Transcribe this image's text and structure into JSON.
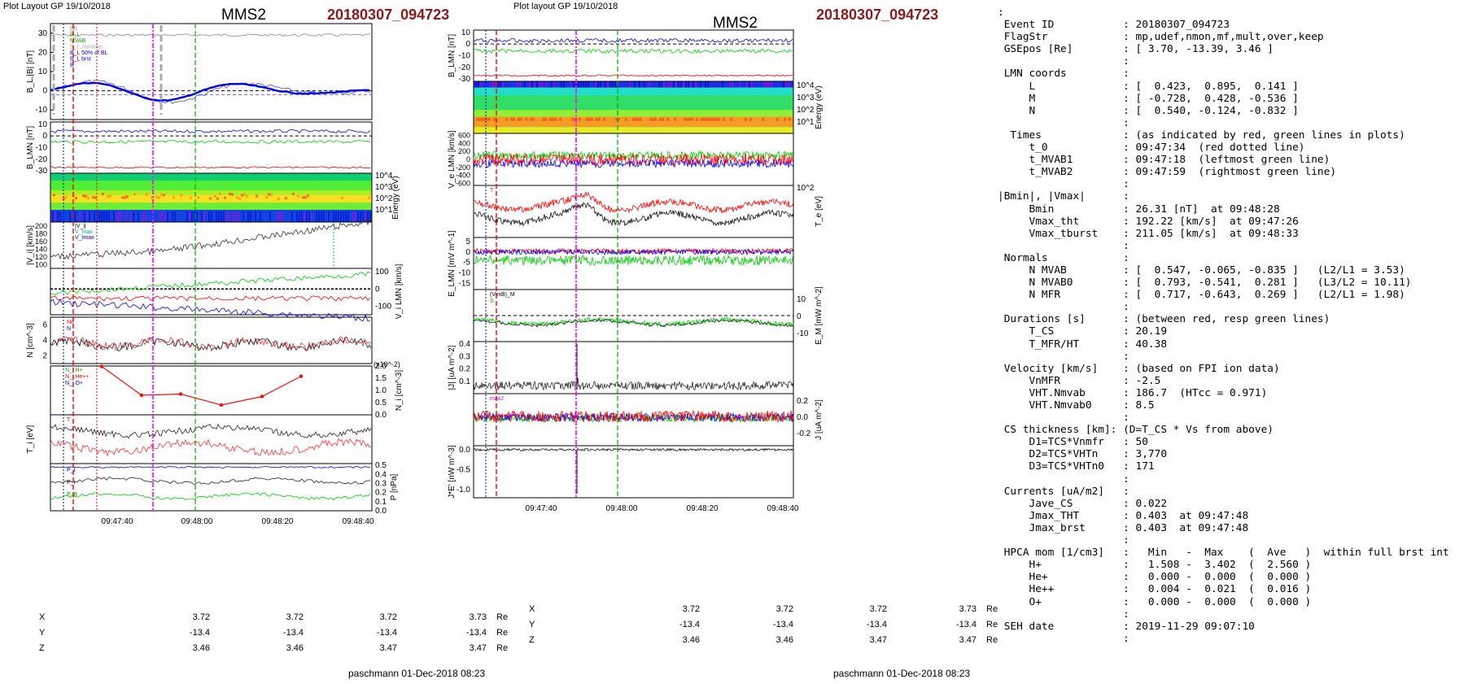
{
  "left": {
    "header_label": "Plot Layout GP 19/10/2018",
    "spacecraft": "MMS2",
    "event_id": "20180307_094723",
    "time_ticks": [
      "09:47:40",
      "09:48:00",
      "09:48:20",
      "09:48:40"
    ],
    "positions": {
      "rows": [
        {
          "label": "X",
          "values": [
            "3.72",
            "3.72",
            "3.72",
            "3.73"
          ],
          "unit": "Re"
        },
        {
          "label": "Y",
          "values": [
            "-13.4",
            "-13.4",
            "-13.4",
            "-13.4"
          ],
          "unit": "Re"
        },
        {
          "label": "Z",
          "values": [
            "3.46",
            "3.46",
            "3.47",
            "3.47"
          ],
          "unit": "Re"
        }
      ]
    },
    "footer": "paschmann 01-Dec-2018 08:23"
  },
  "middle": {
    "header_label": "Plot layout GP 19/10/2018",
    "spacecraft": "MMS2",
    "event_id": "20180307_094723",
    "time_ticks": [
      "09:47:40",
      "09:48:00",
      "09:48:20",
      "09:48:40"
    ],
    "positions": {
      "rows": [
        {
          "label": "X",
          "values": [
            "3.72",
            "3.72",
            "3.72",
            "3.73"
          ],
          "unit": "Re"
        },
        {
          "label": "Y",
          "values": [
            "-13.4",
            "-13.4",
            "-13.4",
            "-13.4"
          ],
          "unit": "Re"
        },
        {
          "label": "Z",
          "values": [
            "3.46",
            "3.46",
            "3.47",
            "3.47"
          ],
          "unit": "Re"
        }
      ]
    },
    "footer": "paschmann 01-Dec-2018 08:23"
  },
  "info_panel": {
    "lines": [
      ":",
      " Event ID           : 20180307_094723",
      " FlagStr            : mp,udef,nmon,mf,mult,over,keep",
      " GSEpos [Re]        : [ 3.70, -13.39, 3.46 ]",
      "                    :",
      " LMN coords         :",
      "     L              : [  0.423,  0.895,  0.141 ]",
      "     M              : [ -0.728,  0.428, -0.536 ]",
      "     N              : [  0.540, -0.124, -0.832 ]",
      "                    :",
      "  Times             : (as indicated by red, green lines in plots)",
      "     t_0            : 09:47:34  (red dotted line)",
      "     t_MVAB1        : 09:47:18  (leftmost green line)",
      "     t_MVAB2        : 09:47:59  (rightmost green line)",
      "                    :",
      "|Bmin|, |Vmax|      :",
      "     Bmin           : 26.31 [nT]  at 09:48:28",
      "     Vmax_tht       : 192.22 [km/s]  at 09:47:26",
      "     Vmax_tburst    : 211.05 [km/s]  at 09:48:33",
      "                    :",
      " Normals            :",
      "     N MVAB         : [  0.547, -0.065, -0.835 ]   (L2/L1 = 3.53)",
      "     N MVAB0        : [  0.793, -0.541,  0.281 ]   (L3/L2 = 10.11)",
      "     N MFR          : [  0.717, -0.643,  0.269 ]   (L2/L1 = 1.98)",
      "                    :",
      " Durations [s]      : (between red, resp green lines)",
      "     T_CS           : 20.19",
      "     T_MFR/HT       : 40.38",
      "                    :",
      " Velocity [km/s]    : (based on FPI ion data)",
      "     VnMFR          : -2.5",
      "     VHT.Nmvab      : 186.7  (HTcc = 0.971)",
      "     VHT.Nmvab0     : 8.5",
      "                    :",
      " CS thickness [km]: (D=T_CS * Vs from above)",
      "     D1=TCS*Vnmfr   : 50",
      "     D2=TCS*VHTn    : 3,770",
      "     D3=TCS*VHTn0   : 171",
      "                    :",
      " Currents [uA/m2]   :",
      "     Jave_CS        : 0.022",
      "     Jmax_THT       : 0.403  at 09:47:48",
      "     Jmax_brst      : 0.403  at 09:47:48",
      "                    :",
      " HPCA mom [1/cm3]   :   Min   -  Max    (  Ave   )  within full brst int",
      "     H+             :   1.508 -  3.402  (  2.560 )",
      "     He+            :   0.000 -  0.000  (  0.000 )",
      "     He++           :   0.004 -  0.021  (  0.016 )",
      "     O+             :   0.000 -  0.000  (  0.000 )",
      "                    :",
      " SEH date           : 2019-11-29 09:07:10",
      "                    :"
    ]
  },
  "chart_data": [
    {
      "type": "line",
      "title": "MMS2  20180307_094723",
      "panels": [
        {
          "id": "B_L",
          "ylabel": "B_L,|B| [nT]",
          "ylim": [
            -15,
            35
          ],
          "ticks": [
            30,
            20,
            10,
            0,
            -10
          ],
          "legend": [
            "|B|",
            "B_L",
            "MVAB",
            "B_L,minmax",
            "B_L 50% of BL",
            "B_L brst",
            "B"
          ],
          "series": [
            {
              "name": "|B|",
              "color": "#808080",
              "level": 29
            },
            {
              "name": "B_L",
              "color": "#0000ff",
              "level": 2
            }
          ]
        },
        {
          "id": "B_LMN",
          "ylabel": "B_LMN [nT]",
          "ylim": [
            -32,
            12
          ],
          "ticks": [
            10,
            0,
            -10,
            -20,
            -30
          ],
          "legend": [
            "B_L",
            "B_M",
            "B_N"
          ],
          "series": [
            {
              "name": "B_L",
              "color": "#0000ff",
              "level": 4
            },
            {
              "name": "B_M",
              "color": "#00cc00",
              "level": -5
            },
            {
              "name": "B_N",
              "color": "#ff0000",
              "level": -27
            }
          ]
        },
        {
          "id": "Energy",
          "ylabel": "Energy (eV)",
          "type": "heatmap",
          "ticks": [
            "10^4",
            "10^3",
            "10^2",
            "10^1"
          ]
        },
        {
          "id": "Vi",
          "ylabel": "|V_i| [km/s]",
          "ylim": [
            90,
            210
          ],
          "ticks": [
            200,
            180,
            160,
            140,
            120,
            100
          ],
          "legend": [
            "|V_i|",
            "V_max",
            "V_tmax"
          ]
        },
        {
          "id": "Vi_LMN",
          "ylabel": "V_i LMN [km/s]",
          "ylim": [
            -150,
            120
          ],
          "ticks": [
            100,
            0,
            -100
          ],
          "legend": [
            "V_L",
            "V_M",
            "V_N"
          ]
        },
        {
          "id": "N",
          "ylabel": "N [cm^-3]",
          "ylim": [
            1,
            7
          ],
          "ticks": [
            6,
            4,
            2
          ],
          "legend": [
            "N_e",
            "N"
          ]
        },
        {
          "id": "Ni",
          "ylabel": "N_i [cm^-3]",
          "ylim": [
            0,
            2
          ],
          "ticks": [
            2.0,
            1.5,
            1.0,
            0.5,
            0.0
          ],
          "scale_note": "(x10^-2)",
          "legend": [
            "N_i H+",
            "N_i He++",
            "N_i O+"
          ],
          "points": {
            "x": [
              "09:47:31",
              "09:47:45",
              "09:47:54",
              "09:48:04",
              "09:48:13",
              "09:48:22"
            ],
            "y": [
              1.98,
              0.8,
              0.85,
              0.4,
              0.75,
              1.58
            ]
          }
        },
        {
          "id": "Ti",
          "ylabel": "T_i [eV]",
          "legend": [
            "T",
            "T_par"
          ]
        },
        {
          "id": "P",
          "ylabel": "P [nPa]",
          "ylim": [
            0,
            0.5
          ],
          "ticks": [
            0.5,
            0.4,
            0.3,
            0.2,
            0.1,
            0.0
          ],
          "legend": [
            "P_t",
            "P_i",
            "P_B"
          ]
        }
      ]
    },
    {
      "type": "line",
      "title": "MMS2  20180307_094723",
      "panels": [
        {
          "id": "B_LMN",
          "ylabel": "B_LMN [nT]",
          "ylim": [
            -32,
            12
          ],
          "ticks": [
            10,
            0,
            -10,
            -20,
            -30
          ]
        },
        {
          "id": "Energy",
          "ylabel": "Energy (eV)",
          "type": "heatmap",
          "ticks": [
            "10^4",
            "10^3",
            "10^2",
            "10^1"
          ]
        },
        {
          "id": "Ve_LMN",
          "ylabel": "V_e LMN [km/s]",
          "ylim": [
            -650,
            650
          ],
          "ticks": [
            600,
            400,
            200,
            0,
            -200,
            -400,
            -600
          ]
        },
        {
          "id": "Te",
          "ylabel": "T_e [eV]",
          "ticks": [
            "10^2"
          ],
          "legend": [
            "T_perp",
            "T_par"
          ]
        },
        {
          "id": "E_LMN",
          "ylabel": "E_LMN [mV m^-1]",
          "ylim": [
            -18,
            7
          ],
          "ticks": [
            5,
            0,
            -5,
            -10,
            -15
          ]
        },
        {
          "id": "EM",
          "ylabel": "E_M [mW m^-2]",
          "ticks": [
            10,
            0,
            -10
          ],
          "legend": [
            "(VexB)_M",
            "S"
          ]
        },
        {
          "id": "J",
          "ylabel": "|J| [uA m^-2]",
          "ylim": [
            0,
            0.4
          ],
          "ticks": [
            0.4,
            0.3,
            0.2,
            0.1
          ]
        },
        {
          "id": "J_LMN",
          "ylabel": "J [uA m^-2]",
          "ylim": [
            -0.3,
            0.25
          ],
          "ticks": [
            0.2,
            0.0,
            -0.2
          ],
          "legend": [
            "maxJ"
          ]
        },
        {
          "id": "JdotE",
          "ylabel": "J*E' [nW m^-3]",
          "ylim": [
            -1.2,
            0.1
          ],
          "ticks": [
            0.0,
            -0.5,
            -1.0
          ]
        }
      ]
    }
  ]
}
